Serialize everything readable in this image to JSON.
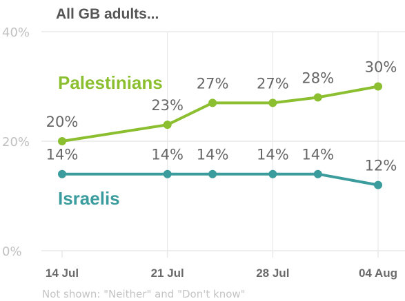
{
  "chart_data": {
    "type": "line",
    "title": "All GB adults...",
    "note": "Not shown: \"Neither\" and \"Don't know\"",
    "ylim": [
      0,
      40
    ],
    "yticks": [
      0,
      20,
      40
    ],
    "ytick_labels": [
      "0%",
      "20%",
      "40%"
    ],
    "xlim": [
      "2023-07-14",
      "2023-08-04"
    ],
    "xticks": [
      "2023-07-14",
      "2023-07-21",
      "2023-07-28",
      "2023-08-04"
    ],
    "xtick_labels": [
      "14 Jul",
      "21 Jul",
      "28 Jul",
      "04 Aug"
    ],
    "grid": true,
    "value_suffix": "%",
    "series": [
      {
        "name": "Palestinians",
        "color": "#8cbf2f",
        "points": [
          {
            "x": "2023-07-14",
            "y": 20
          },
          {
            "x": "2023-07-21",
            "y": 23
          },
          {
            "x": "2023-07-24",
            "y": 27
          },
          {
            "x": "2023-07-28",
            "y": 27
          },
          {
            "x": "2023-07-31",
            "y": 28
          },
          {
            "x": "2023-08-04",
            "y": 30
          }
        ]
      },
      {
        "name": "Israelis",
        "color": "#3a9c9c",
        "points": [
          {
            "x": "2023-07-14",
            "y": 14
          },
          {
            "x": "2023-07-21",
            "y": 14
          },
          {
            "x": "2023-07-24",
            "y": 14
          },
          {
            "x": "2023-07-28",
            "y": 14
          },
          {
            "x": "2023-07-31",
            "y": 14
          },
          {
            "x": "2023-08-04",
            "y": 12
          }
        ]
      }
    ]
  },
  "colors": {
    "title": "#555555",
    "axis_text": "#c0c0c0",
    "xtick_text": "#6a6a6a",
    "grid": "#e8e8e8",
    "data_label": "#666666",
    "note": "#c4c4c4"
  }
}
